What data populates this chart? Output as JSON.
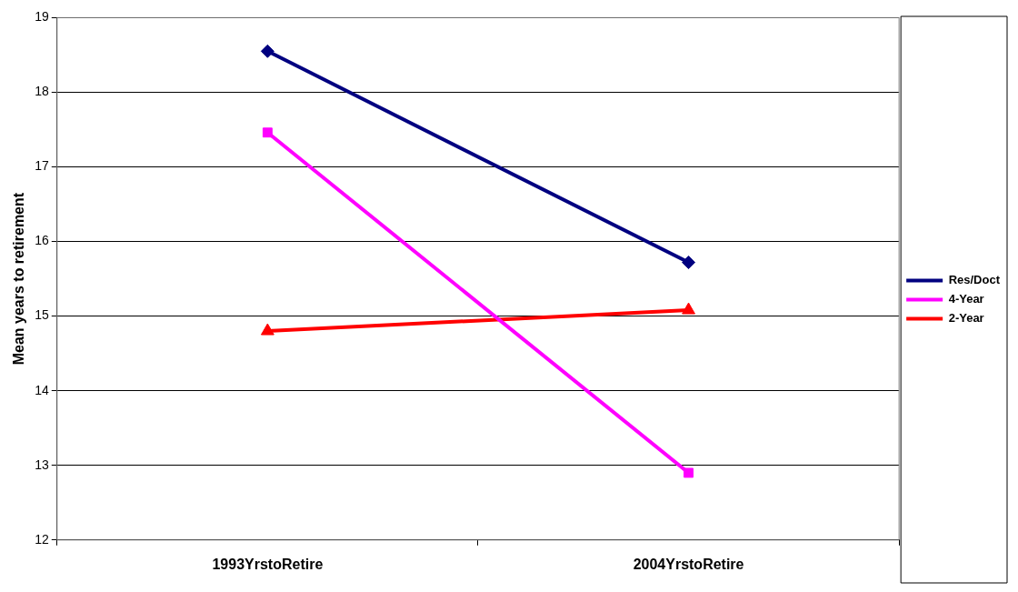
{
  "chart_data": {
    "type": "line",
    "ylabel": "Mean years to retirement",
    "categories": [
      "1993YrstoRetire",
      "2004YrstoRetire"
    ],
    "series": [
      {
        "name": "Res/Doct",
        "color": "#000080",
        "values": [
          18.55,
          15.72
        ],
        "marker": "diamond"
      },
      {
        "name": "4-Year",
        "color": "#ff00ff",
        "values": [
          17.46,
          12.9
        ],
        "marker": "square"
      },
      {
        "name": "2-Year",
        "color": "#ff0000",
        "values": [
          14.8,
          15.08
        ],
        "marker": "triangle"
      }
    ],
    "ylim": [
      12,
      19
    ],
    "yticks": [
      12,
      13,
      14,
      15,
      16,
      17,
      18,
      19
    ],
    "grid": "y",
    "legend": "right",
    "line_style": "solid"
  }
}
